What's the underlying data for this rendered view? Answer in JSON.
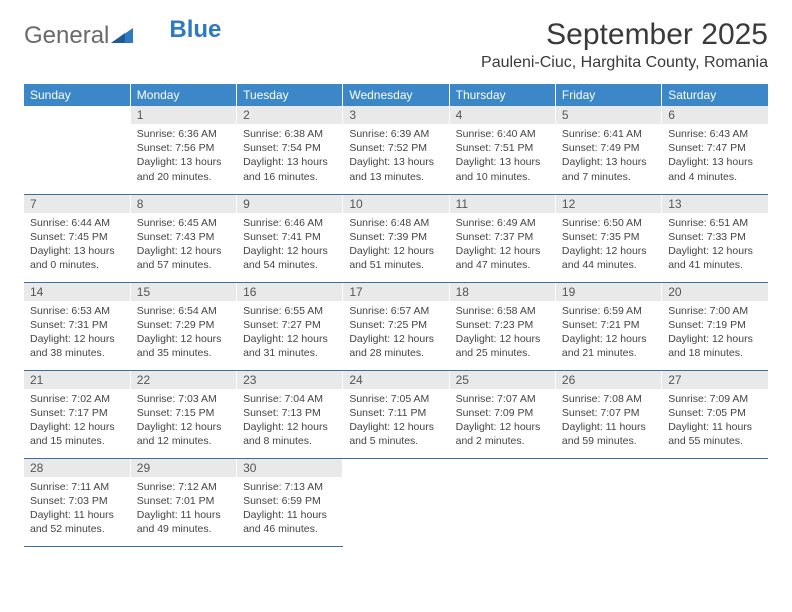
{
  "logo": {
    "part1": "General",
    "part2": "Blue"
  },
  "title": "September 2025",
  "location": "Pauleni-Ciuc, Harghita County, Romania",
  "colors": {
    "header_bg": "#3b87c8",
    "header_text": "#ffffff",
    "daynum_bg": "#e9e9e9",
    "cell_border": "#3b6fa0",
    "logo_gray": "#6a6a6a",
    "logo_blue": "#2f78c2"
  },
  "weekdays": [
    "Sunday",
    "Monday",
    "Tuesday",
    "Wednesday",
    "Thursday",
    "Friday",
    "Saturday"
  ],
  "weeks": [
    [
      {
        "blank": true
      },
      {
        "n": "1",
        "sr": "6:36 AM",
        "ss": "7:56 PM",
        "dl": "13 hours and 20 minutes."
      },
      {
        "n": "2",
        "sr": "6:38 AM",
        "ss": "7:54 PM",
        "dl": "13 hours and 16 minutes."
      },
      {
        "n": "3",
        "sr": "6:39 AM",
        "ss": "7:52 PM",
        "dl": "13 hours and 13 minutes."
      },
      {
        "n": "4",
        "sr": "6:40 AM",
        "ss": "7:51 PM",
        "dl": "13 hours and 10 minutes."
      },
      {
        "n": "5",
        "sr": "6:41 AM",
        "ss": "7:49 PM",
        "dl": "13 hours and 7 minutes."
      },
      {
        "n": "6",
        "sr": "6:43 AM",
        "ss": "7:47 PM",
        "dl": "13 hours and 4 minutes."
      }
    ],
    [
      {
        "n": "7",
        "sr": "6:44 AM",
        "ss": "7:45 PM",
        "dl": "13 hours and 0 minutes."
      },
      {
        "n": "8",
        "sr": "6:45 AM",
        "ss": "7:43 PM",
        "dl": "12 hours and 57 minutes."
      },
      {
        "n": "9",
        "sr": "6:46 AM",
        "ss": "7:41 PM",
        "dl": "12 hours and 54 minutes."
      },
      {
        "n": "10",
        "sr": "6:48 AM",
        "ss": "7:39 PM",
        "dl": "12 hours and 51 minutes."
      },
      {
        "n": "11",
        "sr": "6:49 AM",
        "ss": "7:37 PM",
        "dl": "12 hours and 47 minutes."
      },
      {
        "n": "12",
        "sr": "6:50 AM",
        "ss": "7:35 PM",
        "dl": "12 hours and 44 minutes."
      },
      {
        "n": "13",
        "sr": "6:51 AM",
        "ss": "7:33 PM",
        "dl": "12 hours and 41 minutes."
      }
    ],
    [
      {
        "n": "14",
        "sr": "6:53 AM",
        "ss": "7:31 PM",
        "dl": "12 hours and 38 minutes."
      },
      {
        "n": "15",
        "sr": "6:54 AM",
        "ss": "7:29 PM",
        "dl": "12 hours and 35 minutes."
      },
      {
        "n": "16",
        "sr": "6:55 AM",
        "ss": "7:27 PM",
        "dl": "12 hours and 31 minutes."
      },
      {
        "n": "17",
        "sr": "6:57 AM",
        "ss": "7:25 PM",
        "dl": "12 hours and 28 minutes."
      },
      {
        "n": "18",
        "sr": "6:58 AM",
        "ss": "7:23 PM",
        "dl": "12 hours and 25 minutes."
      },
      {
        "n": "19",
        "sr": "6:59 AM",
        "ss": "7:21 PM",
        "dl": "12 hours and 21 minutes."
      },
      {
        "n": "20",
        "sr": "7:00 AM",
        "ss": "7:19 PM",
        "dl": "12 hours and 18 minutes."
      }
    ],
    [
      {
        "n": "21",
        "sr": "7:02 AM",
        "ss": "7:17 PM",
        "dl": "12 hours and 15 minutes."
      },
      {
        "n": "22",
        "sr": "7:03 AM",
        "ss": "7:15 PM",
        "dl": "12 hours and 12 minutes."
      },
      {
        "n": "23",
        "sr": "7:04 AM",
        "ss": "7:13 PM",
        "dl": "12 hours and 8 minutes."
      },
      {
        "n": "24",
        "sr": "7:05 AM",
        "ss": "7:11 PM",
        "dl": "12 hours and 5 minutes."
      },
      {
        "n": "25",
        "sr": "7:07 AM",
        "ss": "7:09 PM",
        "dl": "12 hours and 2 minutes."
      },
      {
        "n": "26",
        "sr": "7:08 AM",
        "ss": "7:07 PM",
        "dl": "11 hours and 59 minutes."
      },
      {
        "n": "27",
        "sr": "7:09 AM",
        "ss": "7:05 PM",
        "dl": "11 hours and 55 minutes."
      }
    ],
    [
      {
        "n": "28",
        "sr": "7:11 AM",
        "ss": "7:03 PM",
        "dl": "11 hours and 52 minutes."
      },
      {
        "n": "29",
        "sr": "7:12 AM",
        "ss": "7:01 PM",
        "dl": "11 hours and 49 minutes."
      },
      {
        "n": "30",
        "sr": "7:13 AM",
        "ss": "6:59 PM",
        "dl": "11 hours and 46 minutes."
      },
      {
        "blank": true
      },
      {
        "blank": true
      },
      {
        "blank": true
      },
      {
        "blank": true
      }
    ]
  ],
  "labels": {
    "sunrise": "Sunrise:",
    "sunset": "Sunset:",
    "daylight": "Daylight:"
  }
}
